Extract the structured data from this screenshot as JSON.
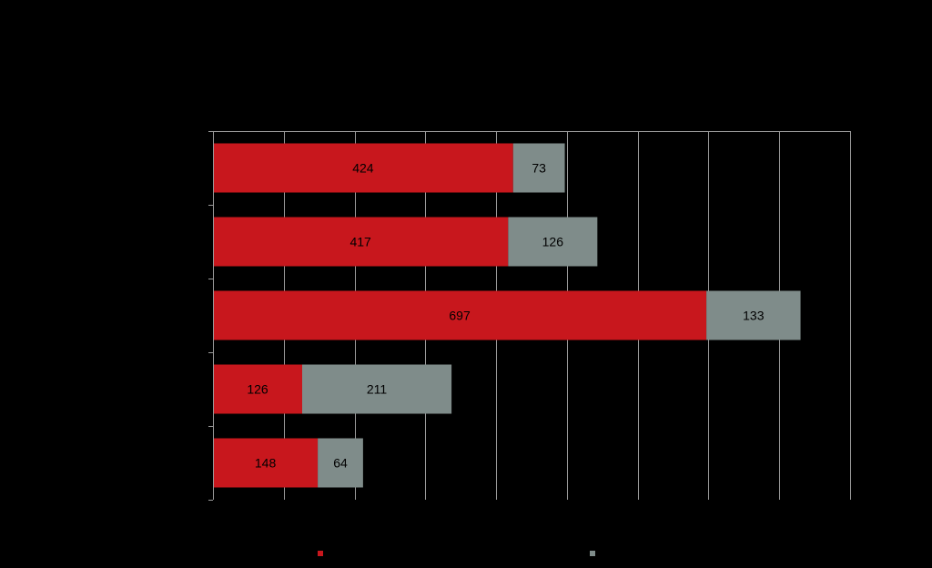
{
  "chart_data": {
    "type": "bar",
    "orientation": "horizontal",
    "stacked": true,
    "title": "",
    "xlabel": "",
    "ylabel": "",
    "xlim": [
      0,
      900
    ],
    "grid": true,
    "categories": [
      "",
      "",
      "",
      "",
      ""
    ],
    "series": [
      {
        "color": "#c8171d",
        "values": [
          424,
          417,
          697,
          126,
          148
        ]
      },
      {
        "color": "#7f8c8a",
        "values": [
          73,
          126,
          133,
          211,
          64
        ]
      }
    ],
    "legend_placement": "bottom"
  },
  "colors": {
    "background": "#000000",
    "gridline": "#9a9a9a",
    "axis": "#9a9a9a",
    "label_text": "#000000"
  }
}
